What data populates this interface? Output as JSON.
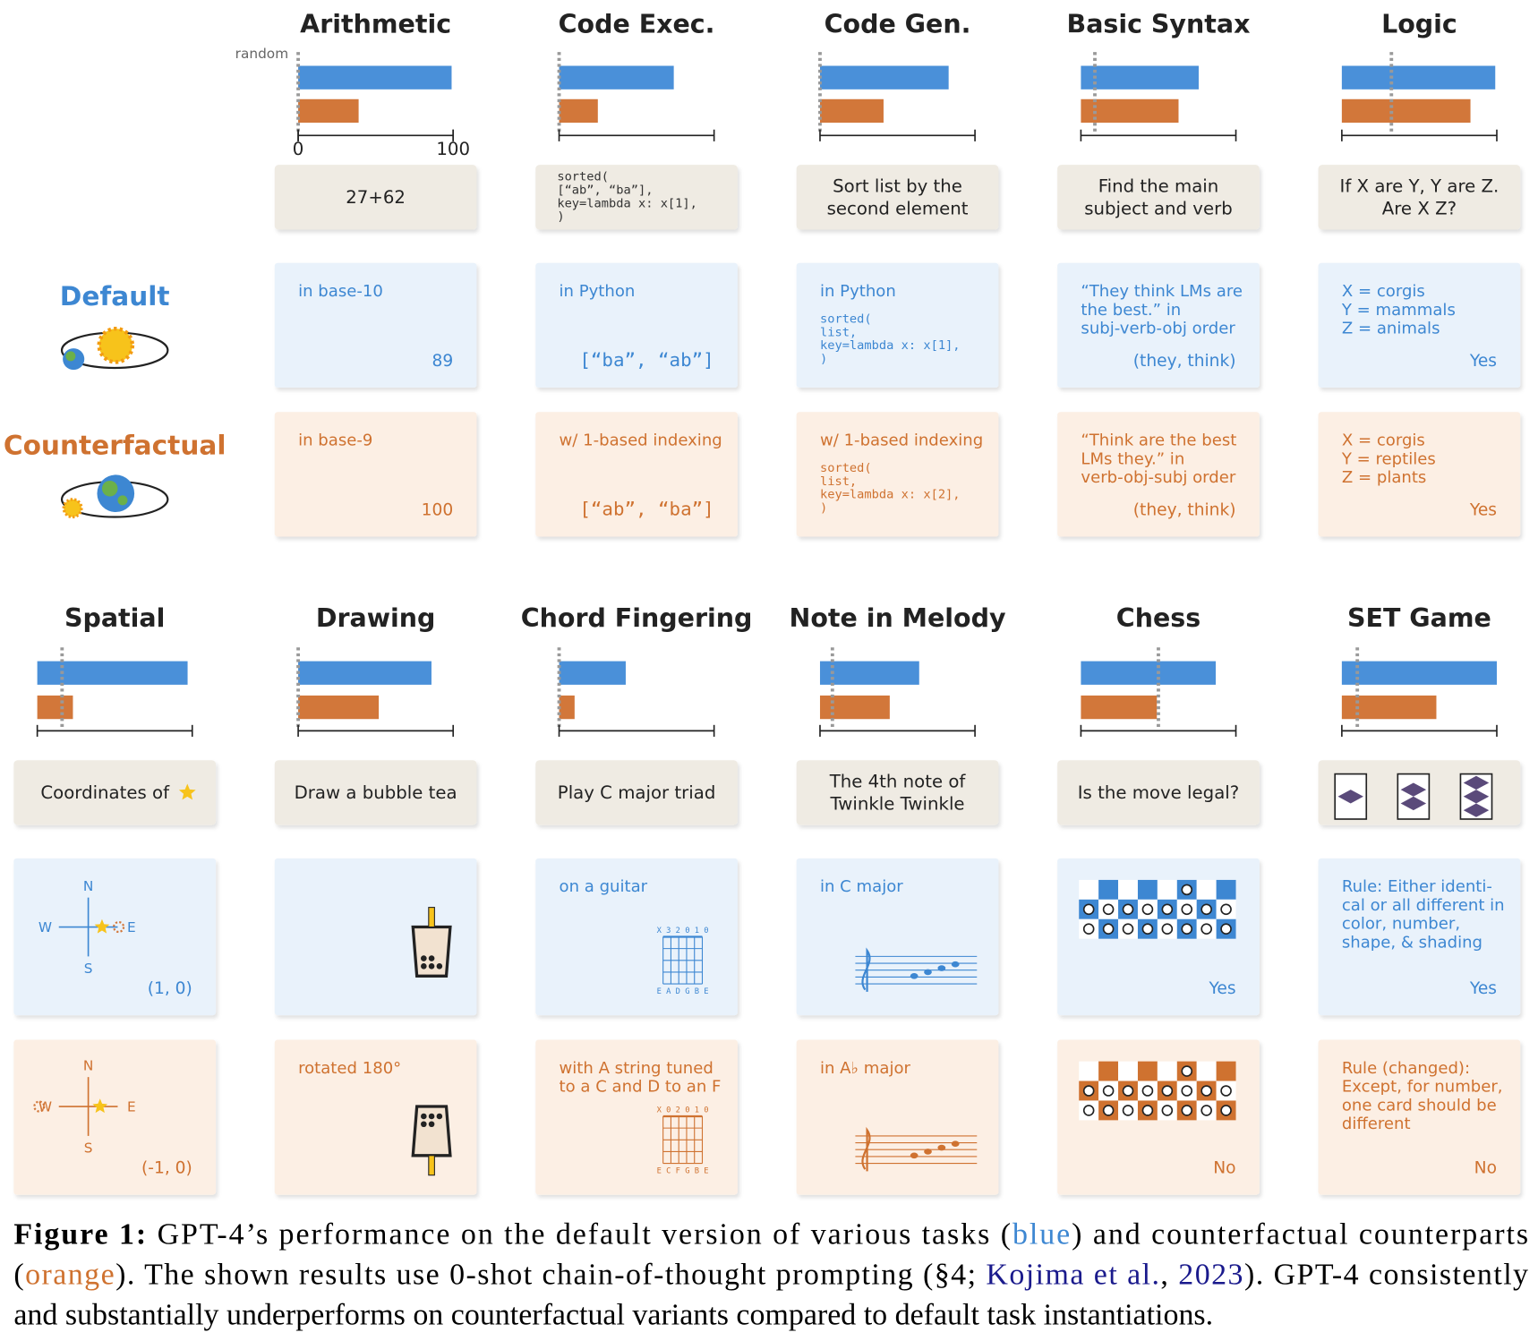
{
  "random_label": "random",
  "row_labels": {
    "default": "Default",
    "counterfactual": "Counterfactual"
  },
  "chart_data": [
    {
      "type": "bar",
      "orientation": "horizontal",
      "title": "Arithmetic",
      "values": [
        99,
        39
      ],
      "colors": [
        "#4a90d9",
        "#d2773a"
      ],
      "random": 0,
      "xlim": [
        0,
        100
      ],
      "xticks": [
        0,
        100
      ],
      "prompt": [
        "27+62"
      ],
      "default": {
        "condition": [
          "in base-10"
        ],
        "answer": "89"
      },
      "counterfactual": {
        "condition": [
          "in base-9"
        ],
        "answer": "100"
      }
    },
    {
      "type": "bar",
      "orientation": "horizontal",
      "title": "Code Exec.",
      "values": [
        74,
        25
      ],
      "colors": [
        "#4a90d9",
        "#d2773a"
      ],
      "random": 0,
      "xlim": [
        0,
        100
      ],
      "prompt_code": [
        "sorted(",
        "  [“ab”, “ba”],",
        "  key=lambda x: x[1],",
        ")"
      ],
      "default": {
        "condition": [
          "in Python"
        ],
        "answer": "[“ba”, “ab”]"
      },
      "counterfactual": {
        "condition": [
          "w/ 1-based indexing"
        ],
        "answer": "[“ab”, “ba”]"
      }
    },
    {
      "type": "bar",
      "orientation": "horizontal",
      "title": "Code Gen.",
      "values": [
        83,
        41
      ],
      "colors": [
        "#4a90d9",
        "#d2773a"
      ],
      "random": 0,
      "xlim": [
        0,
        100
      ],
      "prompt": [
        "Sort list by the",
        "second element"
      ],
      "default": {
        "condition": [
          "in Python"
        ],
        "code": [
          "sorted(",
          "  list,",
          "  key=lambda x: x[1],",
          ")"
        ]
      },
      "counterfactual": {
        "condition": [
          "w/ 1-based indexing"
        ],
        "code": [
          "sorted(",
          "  list,",
          "  key=lambda x: x[2],",
          ")"
        ]
      }
    },
    {
      "type": "bar",
      "orientation": "horizontal",
      "title": "Basic Syntax",
      "values": [
        76,
        63
      ],
      "colors": [
        "#4a90d9",
        "#d2773a"
      ],
      "random": 9,
      "xlim": [
        0,
        100
      ],
      "prompt": [
        "Find the main",
        "subject and verb"
      ],
      "default": {
        "condition": [
          "“They think LMs are",
          "the best.” in",
          "subj-verb-obj order"
        ],
        "answer": "(they, think)"
      },
      "counterfactual": {
        "condition": [
          "“Think are the best",
          "LMs they.” in",
          "verb-obj-subj order"
        ],
        "answer": "(they, think)"
      }
    },
    {
      "type": "bar",
      "orientation": "horizontal",
      "title": "Logic",
      "values": [
        99,
        83
      ],
      "colors": [
        "#4a90d9",
        "#d2773a"
      ],
      "random": 32,
      "xlim": [
        0,
        100
      ],
      "prompt": [
        "If X are Y, Y are Z.",
        "Are X Z?"
      ],
      "default": {
        "condition": [
          "X = corgis",
          "Y = mammals",
          "Z = animals"
        ],
        "answer": "Yes"
      },
      "counterfactual": {
        "condition": [
          "X = corgis",
          "Y = reptiles",
          "Z = plants"
        ],
        "answer": "Yes"
      }
    },
    {
      "type": "bar",
      "orientation": "horizontal",
      "title": "Spatial",
      "values": [
        97,
        23
      ],
      "colors": [
        "#4a90d9",
        "#d2773a"
      ],
      "random": 16,
      "xlim": [
        0,
        100
      ],
      "prompt": [
        "Coordinates of"
      ],
      "compass": [
        "N",
        "W",
        "E",
        "S"
      ],
      "default": {
        "answer": "(1, 0)"
      },
      "counterfactual": {
        "answer": "(-1, 0)"
      }
    },
    {
      "type": "bar",
      "orientation": "horizontal",
      "title": "Drawing",
      "values": [
        86,
        52
      ],
      "colors": [
        "#4a90d9",
        "#d2773a"
      ],
      "random": 0,
      "xlim": [
        0,
        100
      ],
      "prompt": [
        "Draw a bubble tea"
      ],
      "default": {},
      "counterfactual": {
        "condition": [
          "rotated 180°"
        ]
      }
    },
    {
      "type": "bar",
      "orientation": "horizontal",
      "title": "Chord Fingering",
      "values": [
        43,
        10
      ],
      "colors": [
        "#4a90d9",
        "#d2773a"
      ],
      "random": 0,
      "xlim": [
        0,
        100
      ],
      "prompt": [
        "Play C major triad"
      ],
      "default": {
        "condition": [
          "on a guitar"
        ],
        "tab": "X 3 2 0 1 0",
        "strings": "E A D G B E"
      },
      "counterfactual": {
        "condition": [
          "with A string tuned",
          "to a C and D to an F"
        ],
        "tab": "X 0 2 0 1 0",
        "strings": "E C F G B E"
      }
    },
    {
      "type": "bar",
      "orientation": "horizontal",
      "title": "Note in Melody",
      "values": [
        64,
        45
      ],
      "colors": [
        "#4a90d9",
        "#d2773a"
      ],
      "random": 8,
      "xlim": [
        0,
        100
      ],
      "prompt": [
        "The 4th note of",
        "Twinkle Twinkle"
      ],
      "default": {
        "condition": [
          "in C major"
        ]
      },
      "counterfactual": {
        "condition": [
          "in A♭ major"
        ]
      }
    },
    {
      "type": "bar",
      "orientation": "horizontal",
      "title": "Chess",
      "values": [
        87,
        49
      ],
      "colors": [
        "#4a90d9",
        "#d2773a"
      ],
      "random": 50,
      "xlim": [
        0,
        100
      ],
      "prompt": [
        "Is the move legal?"
      ],
      "default": {
        "answer": "Yes"
      },
      "counterfactual": {
        "answer": "No"
      }
    },
    {
      "type": "bar",
      "orientation": "horizontal",
      "title": "SET Game",
      "values": [
        100,
        61
      ],
      "colors": [
        "#4a90d9",
        "#d2773a"
      ],
      "random": 10,
      "xlim": [
        0,
        100
      ],
      "default": {
        "condition": [
          "Rule: Either identi-",
          "cal or all different in",
          "color, number,",
          "shape, & shading"
        ],
        "answer": "Yes"
      },
      "counterfactual": {
        "condition": [
          "Rule (changed):",
          "Except, for number,",
          "one card should be",
          "different"
        ],
        "answer": "No"
      }
    }
  ],
  "caption": {
    "lines": [
      [
        {
          "text": "Figure 1:",
          "style": "bold"
        },
        {
          "text": " GPT-4’s performance on the default version of various tasks ("
        },
        {
          "text": "blue",
          "style": "blue"
        },
        {
          "text": ") and counterfactual counterparts"
        }
      ],
      [
        {
          "text": "("
        },
        {
          "text": "orange",
          "style": "orange"
        },
        {
          "text": "). The shown results use 0-shot chain-of-thought prompting (§4; "
        },
        {
          "text": "Kojima et al.",
          "style": "link"
        },
        {
          "text": ", "
        },
        {
          "text": "2023",
          "style": "link"
        },
        {
          "text": "). GPT-4 consistently"
        }
      ],
      [
        {
          "text": "and substantially underperforms on counterfactual variants compared to default task instantiations."
        }
      ]
    ]
  }
}
